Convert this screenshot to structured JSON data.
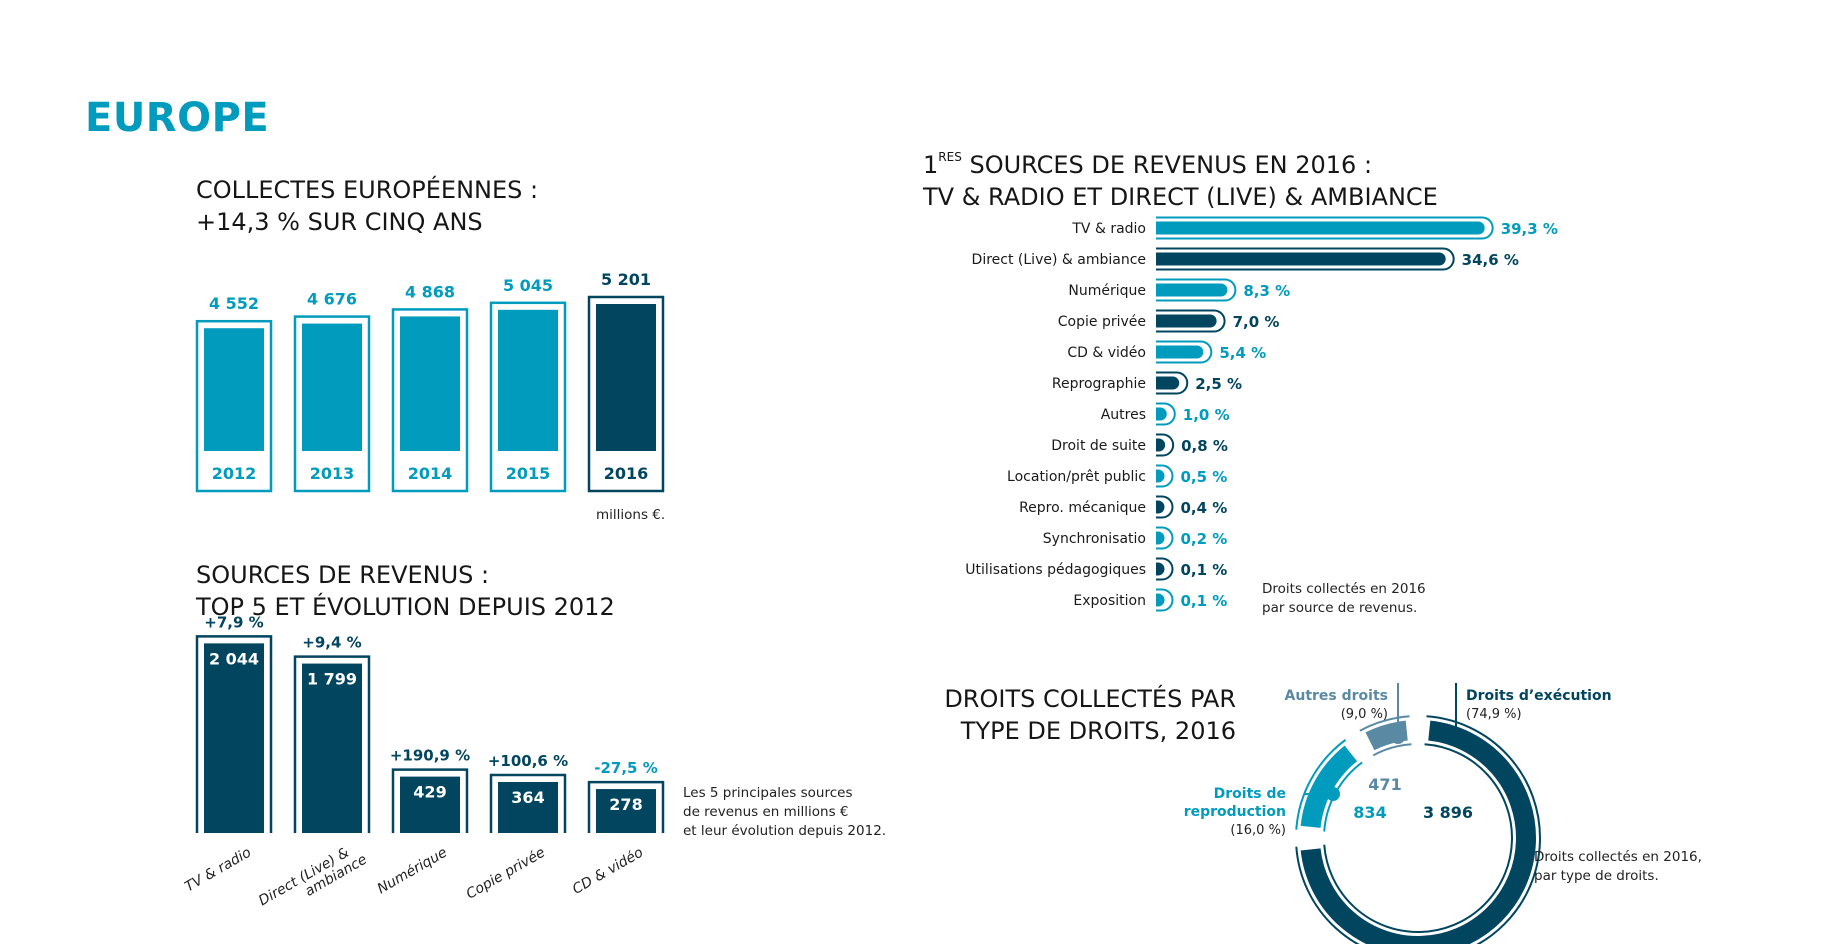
{
  "page": {
    "title": "EUROPE"
  },
  "colors": {
    "light": "#019bbd",
    "dark": "#02455f",
    "grey": "#5a8aa3"
  },
  "chart_data": [
    {
      "id": "collectes",
      "type": "bar",
      "title_line1": "COLLECTES EUROPÉENNES :",
      "title_line2": "+14,3 % SUR CINQ ANS",
      "categories": [
        "2012",
        "2013",
        "2014",
        "2015",
        "2016"
      ],
      "values": [
        4552,
        4676,
        4868,
        5045,
        5201
      ],
      "value_labels": [
        "4 552",
        "4 676",
        "4 868",
        "5 045",
        "5 201"
      ],
      "highlight": [
        false,
        false,
        false,
        false,
        true
      ],
      "unit_note": "millions €.",
      "xlabel": "",
      "ylabel": ""
    },
    {
      "id": "top5",
      "type": "bar",
      "title_line1": "SOURCES DE REVENUS :",
      "title_line2": "TOP 5 ET ÉVOLUTION DEPUIS 2012",
      "categories": [
        "TV & radio",
        "Direct (Live) & ambiance",
        "Numérique",
        "Copie privée",
        "CD & vidéo"
      ],
      "category_lines": [
        [
          "TV & radio"
        ],
        [
          "Direct (Live) &",
          "ambiance"
        ],
        [
          "Numérique"
        ],
        [
          "Copie privée"
        ],
        [
          "CD & vidéo"
        ]
      ],
      "values": [
        2044,
        1799,
        429,
        364,
        278
      ],
      "value_labels": [
        "2 044",
        "1 799",
        "429",
        "364",
        "278"
      ],
      "evolution": [
        "+7,9 %",
        "+9,4 %",
        "+190,9 %",
        "+100,6 %",
        "-27,5 %"
      ],
      "evolution_negative": [
        false,
        false,
        false,
        false,
        true
      ],
      "note": [
        "Les 5 principales sources",
        "de revenus en millions €",
        "et leur évolution depuis 2012."
      ]
    },
    {
      "id": "sources2016",
      "type": "bar",
      "orientation": "horizontal",
      "title_sup_prefix": "1",
      "title_sup": "RES",
      "title_line1": " SOURCES DE REVENUS EN 2016 :",
      "title_line2": "TV & RADIO ET DIRECT (LIVE) & AMBIANCE",
      "categories": [
        "TV & radio",
        "Direct (Live) & ambiance",
        "Numérique",
        "Copie privée",
        "CD & vidéo",
        "Reprographie",
        "Autres",
        "Droit de suite",
        "Location/prêt public",
        "Repro. mécanique",
        "Synchronisatio",
        "Utilisations pédagogiques",
        "Exposition"
      ],
      "values": [
        39.3,
        34.6,
        8.3,
        7.0,
        5.4,
        2.5,
        1.0,
        0.8,
        0.5,
        0.4,
        0.2,
        0.1,
        0.1
      ],
      "value_labels": [
        "39,3 %",
        "34,6 %",
        "8,3 %",
        "7,0 %",
        "5,4 %",
        "2,5 %",
        "1,0 %",
        "0,8 %",
        "0,5 %",
        "0,4 %",
        "0,2 %",
        "0,1 %",
        "0,1 %"
      ],
      "note": [
        "Droits collectés en 2016",
        "par source de revenus."
      ]
    },
    {
      "id": "types",
      "type": "pie",
      "variant": "donut",
      "title_line1": "DROITS COLLECTÉS PAR",
      "title_line2": "TYPE DE DROITS, 2016",
      "slices": [
        {
          "label": "Droits d’exécution",
          "label_lines": [
            "Droits d’exécution"
          ],
          "percent_label": "(74,9 %)",
          "percent": 74.9,
          "value": 3896,
          "value_label": "3 896",
          "color_key": "dark"
        },
        {
          "label": "Droits de reproduction",
          "label_lines": [
            "Droits de",
            "reproduction"
          ],
          "percent_label": "(16,0 %)",
          "percent": 16.0,
          "value": 834,
          "value_label": "834",
          "color_key": "light"
        },
        {
          "label": "Autres droits",
          "label_lines": [
            "Autres droits"
          ],
          "percent_label": "(9,0 %)",
          "percent": 9.0,
          "value": 471,
          "value_label": "471",
          "color_key": "grey"
        }
      ],
      "note": [
        "Droits collectés en 2016,",
        "par type de droits."
      ]
    }
  ]
}
